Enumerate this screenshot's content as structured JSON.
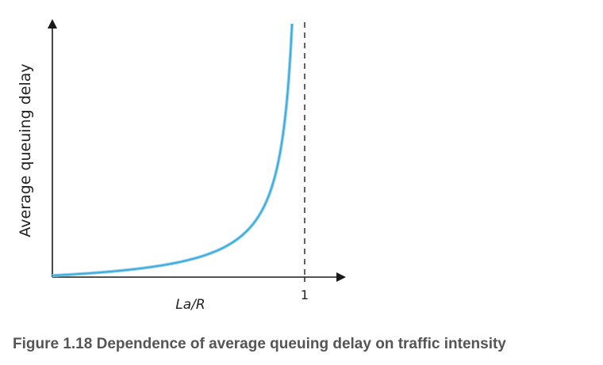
{
  "chart_data": {
    "type": "line",
    "title": "",
    "xlabel": "La/R",
    "ylabel": "Average queuing delay",
    "x_ticks": [
      {
        "value": 1,
        "label": "1"
      }
    ],
    "asymptote_x": 1,
    "asymptote_style": "dashed",
    "xlim": [
      0,
      1.15
    ],
    "series": [
      {
        "color": "#3aaee0",
        "x": [
          0.0,
          0.1,
          0.2,
          0.3,
          0.4,
          0.5,
          0.6,
          0.7,
          0.8,
          0.85,
          0.9,
          0.93,
          0.95
        ],
        "y": [
          0.0,
          0.11,
          0.25,
          0.43,
          0.67,
          1.0,
          1.5,
          2.33,
          4.0,
          5.67,
          9.0,
          13.29,
          19.0
        ]
      }
    ],
    "grid": false,
    "legend": "none"
  },
  "caption": "Figure 1.18 Dependence of average queuing delay on traffic intensity"
}
